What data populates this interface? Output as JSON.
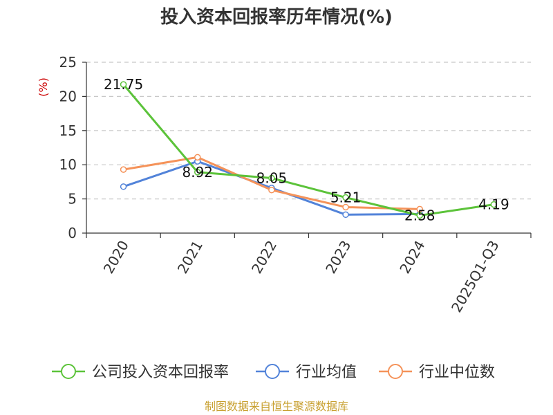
{
  "chart_data": {
    "type": "line",
    "title": "投入资本回报率历年情况(%)",
    "ylabel": "(%)",
    "xlabel": "",
    "categories": [
      "2020",
      "2021",
      "2022",
      "2023",
      "2024",
      "2025Q1-Q3"
    ],
    "ylim": [
      0,
      25
    ],
    "yticks": [
      0,
      5,
      10,
      15,
      20,
      25
    ],
    "grid": true,
    "legend_position": "bottom",
    "series": [
      {
        "name": "公司投入资本回报率",
        "color": "#5cc33a",
        "values": [
          21.75,
          8.92,
          8.05,
          5.21,
          2.58,
          4.19
        ],
        "labels": [
          "21.75",
          "8.92",
          "8.05",
          "5.21",
          "2.58",
          "4.19"
        ]
      },
      {
        "name": "行业均值",
        "color": "#5283d9",
        "values": [
          6.8,
          10.5,
          6.6,
          2.7,
          2.8,
          null
        ]
      },
      {
        "name": "行业中位数",
        "color": "#f5935a",
        "values": [
          9.3,
          11.1,
          6.3,
          3.8,
          3.5,
          null
        ]
      }
    ]
  },
  "footer": {
    "source": "制图数据来自恒生聚源数据库"
  }
}
